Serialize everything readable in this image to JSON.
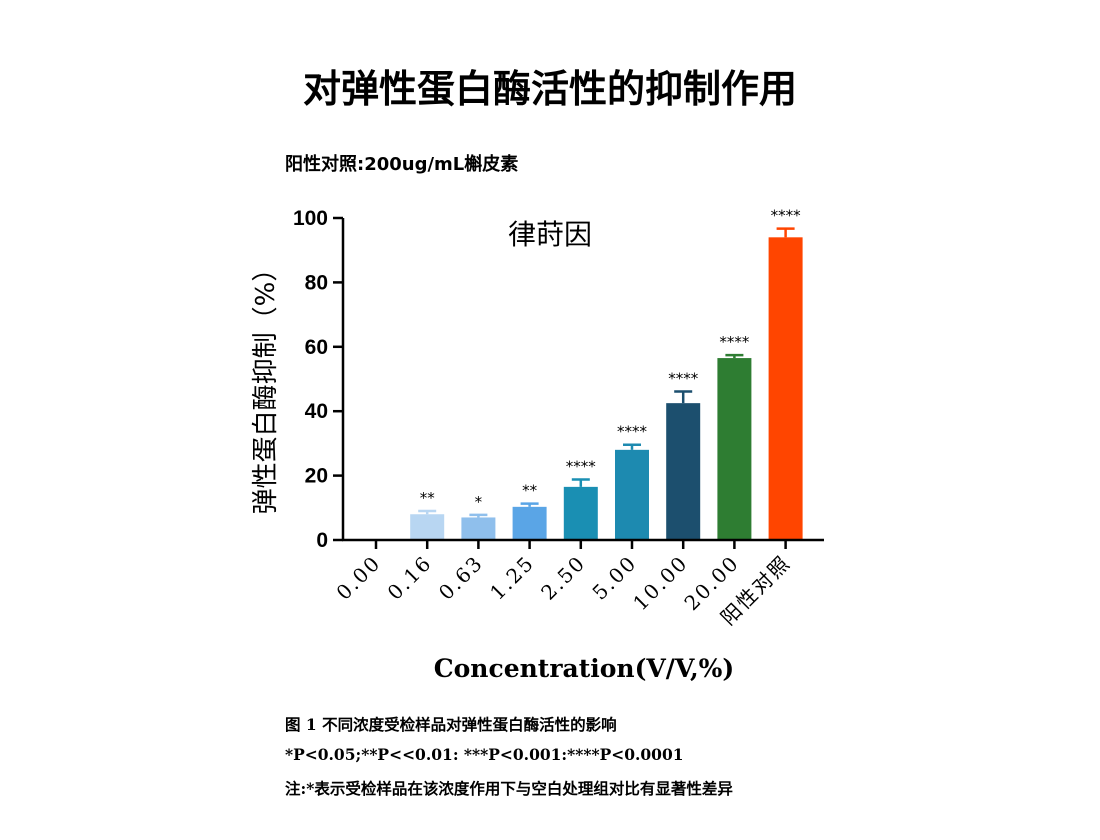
{
  "title": "对弹性蛋白酶活性的抑制作用",
  "positive_control_note": "阳性对照:200ug/mL槲皮素",
  "chart_data": {
    "type": "bar",
    "title": "律莳因",
    "xlabel": "Concentration(V/V,%)",
    "ylabel": "弹性蛋白酶抑制（%）",
    "ylim": [
      0,
      100
    ],
    "yticks": [
      0,
      20,
      40,
      60,
      80,
      100
    ],
    "categories": [
      "0.00",
      "0.16",
      "0.63",
      "1.25",
      "2.50",
      "5.00",
      "10.00",
      "20.00",
      "阳性对照"
    ],
    "values": [
      0,
      8,
      7,
      10.3,
      16.5,
      28,
      42.5,
      56.5,
      94
    ],
    "errors": [
      0,
      1,
      0.8,
      1,
      2.3,
      1.6,
      3.6,
      0.9,
      2.7
    ],
    "significance": [
      "",
      "**",
      "*",
      "**",
      "****",
      "****",
      "****",
      "****",
      "****"
    ],
    "colors": [
      "#d9e8f8",
      "#b8d6f2",
      "#8fbfec",
      "#5aa5e6",
      "#1a8fb3",
      "#1d8ab0",
      "#1c4f6e",
      "#2e7d32",
      "#ff4500"
    ],
    "grid": false
  },
  "captions": [
    "图 1 不同浓度受检样品对弹性蛋白酶活性的影响",
    "*P<0.05;**P<<0.01: ***P<0.001:****P<0.0001",
    "注:*表示受检样品在该浓度作用下与空白处理组对比有显著性差异"
  ]
}
